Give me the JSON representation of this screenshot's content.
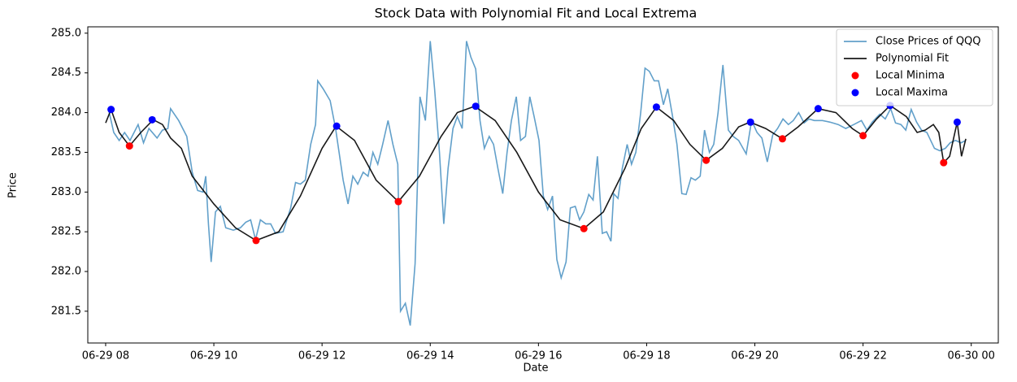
{
  "chart_data": {
    "type": "line",
    "title": "Stock Data with Polynomial Fit and Local Extrema",
    "x_label": "Date",
    "y_label": "Price",
    "xlim": [
      7.67,
      24.5
    ],
    "ylim": [
      281.1,
      285.08
    ],
    "xticks": [
      {
        "value": 8,
        "label": "06-29 08"
      },
      {
        "value": 10,
        "label": "06-29 10"
      },
      {
        "value": 12,
        "label": "06-29 12"
      },
      {
        "value": 14,
        "label": "06-29 14"
      },
      {
        "value": 16,
        "label": "06-29 16"
      },
      {
        "value": 18,
        "label": "06-29 18"
      },
      {
        "value": 20,
        "label": "06-29 20"
      },
      {
        "value": 22,
        "label": "06-29 22"
      },
      {
        "value": 24,
        "label": "06-30 00"
      }
    ],
    "yticks": [
      281.5,
      {
        "value": 282,
        "label": "282.0"
      },
      282.5,
      {
        "value": 283,
        "label": "283.0"
      },
      283.5,
      {
        "value": 284,
        "label": "284.0"
      },
      284.5,
      {
        "value": 285,
        "label": "285.0"
      }
    ],
    "grid": false,
    "legend": "upper right",
    "series": [
      {
        "name": "Close Prices of QQQ",
        "style": "line",
        "color": "#1f77b4",
        "opacity": 0.7,
        "x": [
          8.05,
          8.15,
          8.25,
          8.35,
          8.45,
          8.6,
          8.7,
          8.8,
          8.95,
          9.05,
          9.15,
          9.2,
          9.35,
          9.5,
          9.6,
          9.7,
          9.8,
          9.85,
          9.9,
          9.95,
          10.03,
          10.12,
          10.22,
          10.36,
          10.49,
          10.59,
          10.68,
          10.77,
          10.86,
          10.96,
          11.05,
          11.14,
          11.28,
          11.42,
          11.51,
          11.6,
          11.69,
          11.79,
          11.88,
          11.92,
          12.02,
          12.15,
          12.25,
          12.39,
          12.48,
          12.57,
          12.66,
          12.76,
          12.85,
          12.94,
          13.03,
          13.12,
          13.22,
          13.31,
          13.4,
          13.45,
          13.54,
          13.63,
          13.72,
          13.81,
          13.91,
          14.0,
          14.08,
          14.17,
          14.25,
          14.33,
          14.42,
          14.5,
          14.59,
          14.67,
          14.75,
          14.84,
          14.92,
          15.0,
          15.09,
          15.17,
          15.25,
          15.34,
          15.42,
          15.5,
          15.59,
          15.67,
          15.76,
          15.84,
          15.92,
          16.01,
          16.09,
          16.17,
          16.26,
          16.34,
          16.42,
          16.51,
          16.59,
          16.68,
          16.76,
          16.84,
          16.93,
          17.01,
          17.09,
          17.18,
          17.26,
          17.34,
          17.39,
          17.47,
          17.55,
          17.64,
          17.72,
          17.8,
          17.89,
          17.97,
          18.05,
          18.14,
          18.22,
          18.31,
          18.39,
          18.48,
          18.56,
          18.65,
          18.73,
          18.82,
          18.9,
          18.99,
          19.07,
          19.16,
          19.24,
          19.32,
          19.41,
          19.51,
          19.6,
          19.7,
          19.84,
          19.94,
          20.04,
          20.13,
          20.23,
          20.33,
          20.42,
          20.52,
          20.62,
          20.71,
          20.81,
          20.91,
          21.0,
          21.1,
          21.25,
          21.39,
          21.54,
          21.68,
          21.83,
          21.97,
          22.07,
          22.17,
          22.31,
          22.41,
          22.51,
          22.6,
          22.7,
          22.79,
          22.89,
          22.99,
          23.08,
          23.18,
          23.32,
          23.42,
          23.52,
          23.61,
          23.71,
          23.81,
          23.9
        ],
        "values": [
          284.05,
          283.75,
          283.65,
          283.75,
          283.65,
          283.85,
          283.62,
          283.8,
          283.68,
          283.78,
          283.8,
          284.05,
          283.9,
          283.7,
          283.25,
          283.02,
          283.0,
          283.2,
          282.6,
          282.12,
          282.75,
          282.82,
          282.55,
          282.52,
          282.55,
          282.62,
          282.65,
          282.4,
          282.65,
          282.6,
          282.6,
          282.48,
          282.5,
          282.8,
          283.12,
          283.1,
          283.15,
          283.6,
          283.85,
          284.4,
          284.3,
          284.15,
          283.8,
          283.15,
          282.85,
          283.2,
          283.1,
          283.25,
          283.2,
          283.5,
          283.35,
          283.6,
          283.9,
          283.6,
          283.35,
          281.5,
          281.6,
          281.32,
          282.1,
          284.2,
          283.9,
          284.9,
          284.3,
          283.5,
          282.6,
          283.3,
          283.8,
          283.95,
          283.8,
          284.9,
          284.7,
          284.55,
          283.9,
          283.55,
          283.7,
          283.6,
          283.3,
          282.98,
          283.5,
          283.9,
          284.2,
          283.65,
          283.7,
          284.2,
          283.95,
          283.65,
          282.95,
          282.78,
          282.95,
          282.15,
          281.92,
          282.12,
          282.8,
          282.82,
          282.65,
          282.75,
          282.97,
          282.9,
          283.45,
          282.48,
          282.5,
          282.38,
          282.98,
          282.92,
          283.3,
          283.6,
          283.35,
          283.5,
          284.0,
          284.56,
          284.52,
          284.4,
          284.4,
          284.1,
          284.3,
          283.95,
          283.6,
          282.98,
          282.97,
          283.18,
          283.15,
          283.2,
          283.78,
          283.5,
          283.6,
          284.0,
          284.6,
          283.78,
          283.7,
          283.65,
          283.48,
          283.9,
          283.75,
          283.68,
          283.38,
          283.72,
          283.8,
          283.92,
          283.85,
          283.9,
          284.0,
          283.87,
          283.92,
          283.9,
          283.9,
          283.88,
          283.85,
          283.8,
          283.85,
          283.9,
          283.78,
          283.88,
          283.98,
          283.92,
          284.05,
          283.87,
          283.85,
          283.78,
          284.04,
          283.88,
          283.78,
          283.75,
          283.55,
          283.52,
          283.55,
          283.62,
          283.65,
          283.62,
          283.65
        ]
      },
      {
        "name": "Polynomial Fit",
        "style": "line",
        "color": "#000000",
        "opacity": 0.9,
        "x": [
          8.0,
          8.1,
          8.25,
          8.44,
          8.65,
          8.88,
          9.05,
          9.2,
          9.4,
          9.6,
          10.0,
          10.4,
          10.78,
          11.2,
          11.6,
          12.0,
          12.26,
          12.6,
          13.0,
          13.41,
          13.8,
          14.2,
          14.5,
          14.82,
          15.2,
          15.6,
          16.0,
          16.4,
          16.84,
          17.2,
          17.6,
          17.9,
          18.18,
          18.5,
          18.8,
          19.1,
          19.4,
          19.7,
          19.91,
          20.2,
          20.51,
          20.8,
          21.17,
          21.5,
          21.8,
          22.0,
          22.25,
          22.5,
          22.8,
          23.0,
          23.15,
          23.3,
          23.4,
          23.49,
          23.6,
          23.74,
          23.82,
          23.9
        ],
        "values": [
          283.87,
          284.04,
          283.75,
          283.58,
          283.75,
          283.91,
          283.85,
          283.68,
          283.55,
          283.2,
          282.85,
          282.55,
          282.39,
          282.5,
          282.95,
          283.55,
          283.83,
          283.65,
          283.15,
          282.88,
          283.2,
          283.7,
          284.0,
          284.08,
          283.9,
          283.5,
          283.0,
          282.65,
          282.54,
          282.75,
          283.3,
          283.8,
          284.07,
          283.9,
          283.6,
          283.4,
          283.55,
          283.82,
          283.88,
          283.8,
          283.67,
          283.82,
          284.05,
          284.0,
          283.8,
          283.71,
          283.92,
          284.09,
          283.95,
          283.75,
          283.78,
          283.85,
          283.75,
          283.37,
          283.45,
          283.88,
          283.45,
          283.67
        ]
      },
      {
        "name": "Local Minima",
        "style": "scatter",
        "color": "#ff0000",
        "opacity": 1,
        "x": [
          8.44,
          10.78,
          13.41,
          16.84,
          19.1,
          20.51,
          22.0,
          23.49
        ],
        "values": [
          283.58,
          282.39,
          282.88,
          282.54,
          283.4,
          283.67,
          283.71,
          283.37
        ]
      },
      {
        "name": "Local Maxima",
        "style": "scatter",
        "color": "#0000ff",
        "opacity": 1,
        "x": [
          8.1,
          8.86,
          12.27,
          14.84,
          18.18,
          19.92,
          21.17,
          22.5,
          23.74
        ],
        "values": [
          284.04,
          283.91,
          283.83,
          284.08,
          284.07,
          283.88,
          284.05,
          284.09,
          283.88
        ]
      }
    ]
  }
}
